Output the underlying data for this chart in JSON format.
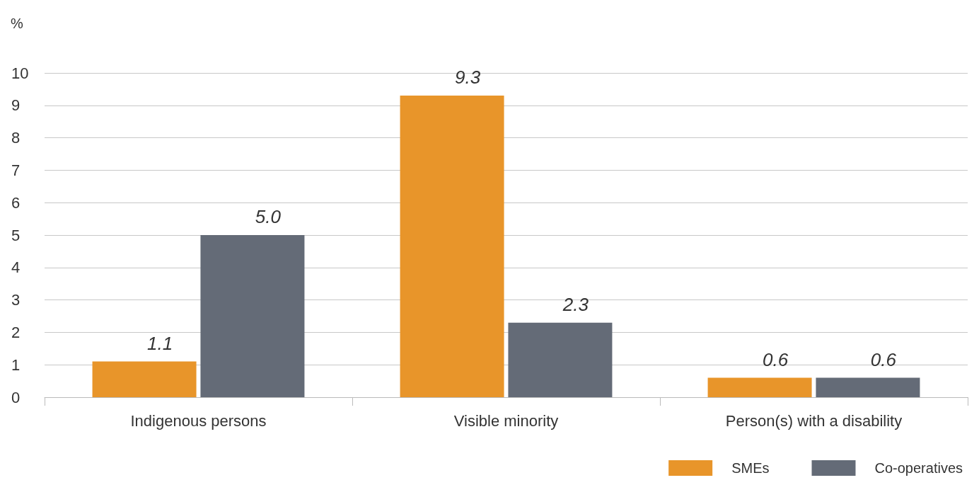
{
  "chart_data": {
    "type": "bar",
    "ylabel": "%",
    "categories": [
      "Indigenous persons",
      "Visible minority",
      "Person(s) with a disability"
    ],
    "series": [
      {
        "name": "SMEs",
        "color": "#e8952a",
        "values": [
          1.1,
          9.3,
          0.6
        ],
        "value_labels": [
          "1.1",
          "9.3",
          "0.6"
        ]
      },
      {
        "name": "Co-operatives",
        "color": "#646b77",
        "values": [
          5.0,
          2.3,
          0.6
        ],
        "value_labels": [
          "5.0",
          "2.3",
          "0.6"
        ]
      }
    ],
    "ylim": [
      0,
      10
    ],
    "yticks": [
      0,
      1,
      2,
      3,
      4,
      5,
      6,
      7,
      8,
      9,
      10
    ],
    "grid": "y",
    "legend": "bottom right"
  }
}
